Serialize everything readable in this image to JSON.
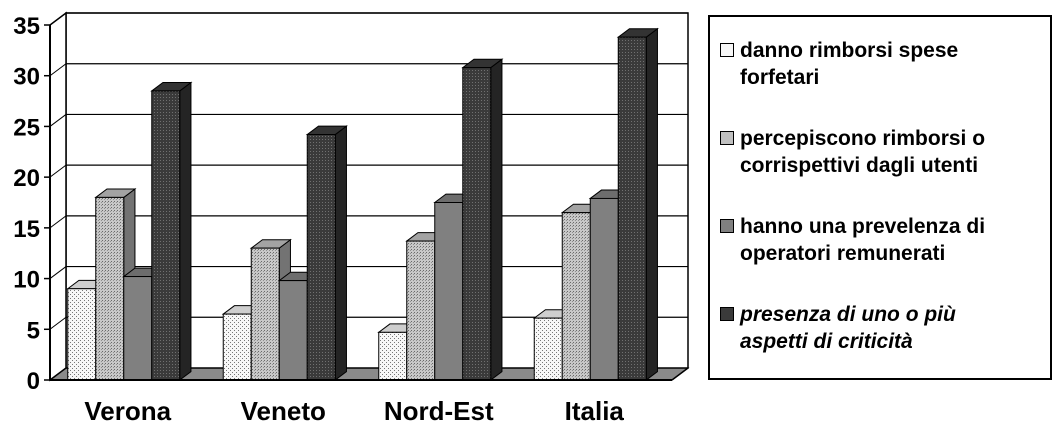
{
  "chart_data": {
    "type": "bar",
    "categories": [
      "Verona",
      "Veneto",
      "Nord-Est",
      "Italia"
    ],
    "series": [
      {
        "name": "danno rimborsi spese forfetari",
        "values": [
          9,
          6.5,
          4.7,
          6.1
        ],
        "color": "#f2f2f2",
        "pattern": "dots-light",
        "italic": false
      },
      {
        "name": "percepiscono rimborsi o corrispettivi dagli utenti",
        "values": [
          18,
          13,
          13.7,
          16.5
        ],
        "color": "#c0c0c0",
        "pattern": "dots-mid",
        "italic": false
      },
      {
        "name": "hanno una prevelenza di operatori remunerati",
        "values": [
          10.2,
          9.8,
          17.5,
          17.9
        ],
        "color": "#808080",
        "pattern": "solid",
        "italic": false
      },
      {
        "name": "presenza di uno o più aspetti di  criticità",
        "values": [
          28.5,
          24.2,
          30.8,
          33.8
        ],
        "color": "#3c3c3c",
        "pattern": "dots-dark",
        "italic": true
      }
    ],
    "ylim": [
      0,
      35
    ],
    "yticks": [
      0,
      5,
      10,
      15,
      20,
      25,
      30,
      35
    ],
    "grid": true,
    "legend": "right",
    "style": "3d-clustered-bar"
  },
  "legend_items": [
    {
      "line1": "danno rimborsi spese",
      "line2": "forfetari"
    },
    {
      "line1": "percepiscono rimborsi o",
      "line2": "corrispettivi dagli utenti"
    },
    {
      "line1": "hanno una prevelenza di",
      "line2": "operatori remunerati"
    },
    {
      "line1": "presenza di uno o più",
      "line2": "aspetti di  criticità"
    }
  ]
}
